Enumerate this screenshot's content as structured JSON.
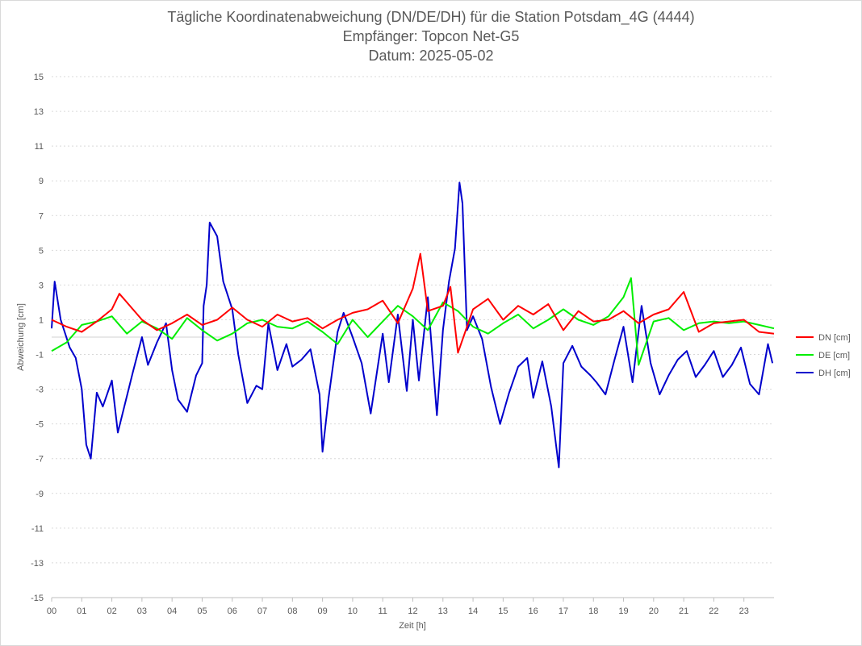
{
  "chart_data": {
    "type": "line",
    "title": "Tägliche Koordinatenabweichung (DN/DE/DH) für die Station Potsdam_4G (4444)",
    "subtitle": "Empfänger: Topcon Net-G5",
    "date_line": "Datum: 2025-05-02",
    "xlabel": "Zeit [h]",
    "ylabel": "Abweichung [cm]",
    "xlim": [
      0,
      24
    ],
    "ylim": [
      -15,
      15
    ],
    "x_ticks": [
      "00",
      "01",
      "02",
      "03",
      "04",
      "05",
      "06",
      "07",
      "08",
      "09",
      "10",
      "11",
      "12",
      "13",
      "14",
      "15",
      "16",
      "17",
      "18",
      "19",
      "20",
      "21",
      "22",
      "23"
    ],
    "y_ticks": [
      15,
      13,
      11,
      9,
      7,
      5,
      3,
      1,
      -1,
      -3,
      -5,
      -7,
      -9,
      -11,
      -13,
      -15
    ],
    "grid": "horizontal-dotted",
    "legend_position": "right",
    "colors": {
      "DN": "#ff0000",
      "DE": "#00ee00",
      "DH": "#0000cc",
      "grid": "#d9d9d9",
      "text": "#595959"
    },
    "series": [
      {
        "name": "DN [cm]",
        "color": "#ff0000",
        "x": [
          0,
          0.5,
          1,
          1.5,
          2,
          2.25,
          2.5,
          3,
          3.5,
          4,
          4.5,
          5,
          5.5,
          6,
          6.5,
          7,
          7.5,
          8,
          8.5,
          9,
          9.5,
          10,
          10.5,
          11,
          11.5,
          12,
          12.25,
          12.5,
          13,
          13.25,
          13.5,
          14,
          14.5,
          15,
          15.5,
          16,
          16.5,
          17,
          17.5,
          18,
          18.5,
          19,
          19.5,
          20,
          20.5,
          21,
          21.5,
          22,
          22.5,
          23,
          23.5,
          24
        ],
        "y": [
          1.0,
          0.6,
          0.3,
          0.9,
          1.6,
          2.5,
          2.0,
          1.0,
          0.4,
          0.8,
          1.3,
          0.7,
          1.0,
          1.7,
          1.0,
          0.6,
          1.3,
          0.9,
          1.1,
          0.5,
          1.0,
          1.4,
          1.6,
          2.1,
          0.8,
          2.8,
          4.8,
          1.5,
          1.8,
          2.9,
          -0.9,
          1.6,
          2.2,
          1.0,
          1.8,
          1.3,
          1.9,
          0.4,
          1.5,
          0.9,
          1.0,
          1.5,
          0.8,
          1.3,
          1.6,
          2.6,
          0.3,
          0.8,
          0.9,
          1.0,
          0.3,
          0.2
        ]
      },
      {
        "name": "DE [cm]",
        "color": "#00ee00",
        "x": [
          0,
          0.5,
          1,
          1.5,
          2,
          2.5,
          3,
          3.5,
          4,
          4.5,
          5,
          5.5,
          6,
          6.5,
          7,
          7.5,
          8,
          8.5,
          9,
          9.5,
          10,
          10.5,
          11,
          11.5,
          12,
          12.5,
          13,
          13.5,
          14,
          14.5,
          15,
          15.5,
          16,
          16.5,
          17,
          17.5,
          18,
          18.5,
          19,
          19.25,
          19.5,
          20,
          20.5,
          21,
          21.5,
          22,
          22.5,
          23,
          23.5,
          24
        ],
        "y": [
          -0.8,
          -0.3,
          0.7,
          0.9,
          1.2,
          0.2,
          0.9,
          0.5,
          -0.1,
          1.1,
          0.4,
          -0.2,
          0.2,
          0.8,
          1.0,
          0.6,
          0.5,
          0.9,
          0.3,
          -0.4,
          1.0,
          0.0,
          0.9,
          1.8,
          1.2,
          0.4,
          2.0,
          1.5,
          0.6,
          0.2,
          0.8,
          1.3,
          0.5,
          1.0,
          1.6,
          1.0,
          0.7,
          1.2,
          2.3,
          3.4,
          -1.6,
          0.9,
          1.1,
          0.4,
          0.8,
          0.9,
          0.8,
          0.9,
          0.7,
          0.5
        ]
      },
      {
        "name": "DH [cm]",
        "color": "#0000cc",
        "x": [
          0,
          0.1,
          0.3,
          0.6,
          0.8,
          1,
          1.15,
          1.3,
          1.5,
          1.7,
          2,
          2.2,
          2.5,
          2.7,
          3,
          3.2,
          3.5,
          3.8,
          4,
          4.2,
          4.5,
          4.8,
          5,
          5.05,
          5.15,
          5.25,
          5.5,
          5.7,
          6,
          6.2,
          6.5,
          6.8,
          7,
          7.2,
          7.5,
          7.8,
          8,
          8.3,
          8.6,
          8.9,
          9,
          9.2,
          9.5,
          9.7,
          10,
          10.3,
          10.6,
          11,
          11.2,
          11.5,
          11.8,
          12,
          12.2,
          12.5,
          12.8,
          13,
          13.2,
          13.4,
          13.55,
          13.65,
          13.8,
          14,
          14.3,
          14.6,
          14.9,
          15.2,
          15.5,
          15.8,
          16,
          16.3,
          16.6,
          16.85,
          17,
          17.3,
          17.6,
          17.9,
          18.1,
          18.4,
          18.7,
          19,
          19.3,
          19.6,
          19.9,
          20.2,
          20.5,
          20.8,
          21.1,
          21.4,
          21.7,
          22,
          22.3,
          22.6,
          22.9,
          23.2,
          23.5,
          23.8,
          23.95
        ],
        "y": [
          0.5,
          3.2,
          1.0,
          -0.6,
          -1.2,
          -3.0,
          -6.2,
          -7.0,
          -3.2,
          -4.0,
          -2.5,
          -5.5,
          -3.4,
          -2.0,
          0.0,
          -1.6,
          -0.3,
          0.8,
          -1.9,
          -3.6,
          -4.3,
          -2.2,
          -1.5,
          1.8,
          3.0,
          6.6,
          5.8,
          3.2,
          1.6,
          -1.0,
          -3.8,
          -2.8,
          -3.0,
          0.8,
          -1.9,
          -0.4,
          -1.7,
          -1.3,
          -0.7,
          -3.3,
          -6.6,
          -3.5,
          0.3,
          1.4,
          0.0,
          -1.5,
          -4.4,
          0.2,
          -2.6,
          1.3,
          -3.1,
          1.0,
          -2.5,
          2.3,
          -4.5,
          0.4,
          3.2,
          5.1,
          8.9,
          7.7,
          0.4,
          1.2,
          -0.1,
          -2.9,
          -5.0,
          -3.2,
          -1.7,
          -1.2,
          -3.5,
          -1.4,
          -4.0,
          -7.5,
          -1.5,
          -0.5,
          -1.7,
          -2.2,
          -2.6,
          -3.3,
          -1.3,
          0.6,
          -2.6,
          1.8,
          -1.5,
          -3.3,
          -2.2,
          -1.3,
          -0.8,
          -2.3,
          -1.6,
          -0.8,
          -2.3,
          -1.6,
          -0.6,
          -2.7,
          -3.3,
          -0.4,
          -1.5
        ]
      }
    ]
  }
}
